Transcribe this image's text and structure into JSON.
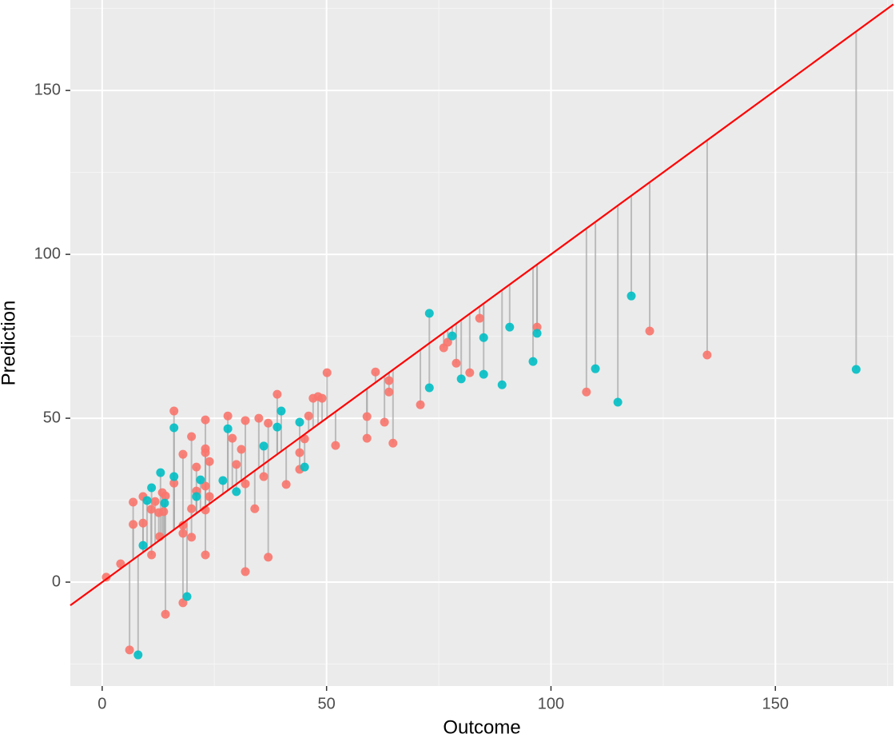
{
  "chart_data": {
    "type": "scatter",
    "x_label": "Outcome",
    "y_label": "Prediction",
    "xlim": [
      -7.1,
      176.3
    ],
    "ylim": [
      -31.7,
      177.6
    ],
    "xticks": [
      0,
      50,
      100,
      150
    ],
    "yticks": [
      0,
      50,
      100,
      150
    ],
    "minor_xticks": [
      25,
      75,
      125,
      175
    ],
    "minor_yticks": [
      -25,
      25,
      75,
      125,
      175
    ],
    "grid": true,
    "reference_line": {
      "slope": 1,
      "intercept": 0,
      "color": "#ff0000"
    },
    "residual_color": "#a6a6a6",
    "series": [
      {
        "color": "#F8766D",
        "x": [
          0.9,
          4.1,
          6.1,
          6.9,
          6.9,
          9.1,
          9.1,
          10.9,
          11,
          11.8,
          12.6,
          12.8,
          13.4,
          13.7,
          14.1,
          14.1,
          16,
          16,
          18,
          18,
          18,
          18,
          19.9,
          19.9,
          19.9,
          21,
          21,
          23,
          23,
          23,
          23,
          23,
          23,
          23.9,
          23.9,
          28,
          29,
          29.9,
          31,
          31.9,
          31.9,
          31.9,
          34,
          34.9,
          36,
          37,
          37,
          39,
          41,
          44,
          44,
          45.1,
          46,
          47,
          48.1,
          49,
          50.1,
          52,
          59,
          59,
          60.9,
          62.9,
          63.9,
          63.9,
          64.8,
          70.9,
          76.1,
          77,
          78.9,
          81.9,
          84.1,
          96.9,
          107.9,
          122,
          134.8
        ],
        "values": [
          1.5,
          5.6,
          -20.7,
          24.4,
          17.6,
          18,
          26.1,
          22.2,
          8.3,
          24.6,
          21.2,
          13.9,
          27.3,
          21.5,
          26.3,
          -9.8,
          52.2,
          30.2,
          39,
          17.3,
          14.9,
          -6.3,
          44.4,
          22.4,
          13.7,
          35.1,
          27.8,
          49.5,
          40.7,
          39.5,
          29.3,
          22,
          8.3,
          36.8,
          26.1,
          50.7,
          43.9,
          35.9,
          40.5,
          49.3,
          30,
          3.2,
          22.4,
          50,
          32.2,
          48.5,
          7.6,
          57.3,
          29.8,
          39.5,
          34.4,
          43.7,
          50.7,
          56.1,
          56.6,
          56.1,
          63.9,
          41.7,
          50.5,
          43.9,
          64.1,
          48.8,
          61.5,
          58,
          42.4,
          54.1,
          71.5,
          73.2,
          66.8,
          63.9,
          80.5,
          77.8,
          58,
          76.6,
          69.3
        ]
      },
      {
        "color": "#00BFC4",
        "x": [
          8,
          9.1,
          10,
          11,
          13,
          13.9,
          16,
          16,
          18.9,
          21,
          21.9,
          26.9,
          28,
          29.9,
          36,
          39,
          39.9,
          44,
          45.1,
          72.9,
          72.9,
          78,
          80,
          85,
          85,
          89.1,
          90.8,
          96,
          96.9,
          109.9,
          114.9,
          117.9,
          168
        ],
        "values": [
          -22.2,
          11.2,
          24.9,
          28.8,
          33.4,
          24.1,
          47.1,
          32.2,
          -4.4,
          26.1,
          31.2,
          31,
          46.8,
          27.6,
          41.5,
          47.3,
          52.2,
          48.8,
          35.1,
          82,
          59.3,
          75.1,
          62,
          74.6,
          63.4,
          60.2,
          77.8,
          67.3,
          75.9,
          65.1,
          54.9,
          87.3,
          64.9
        ]
      }
    ]
  }
}
